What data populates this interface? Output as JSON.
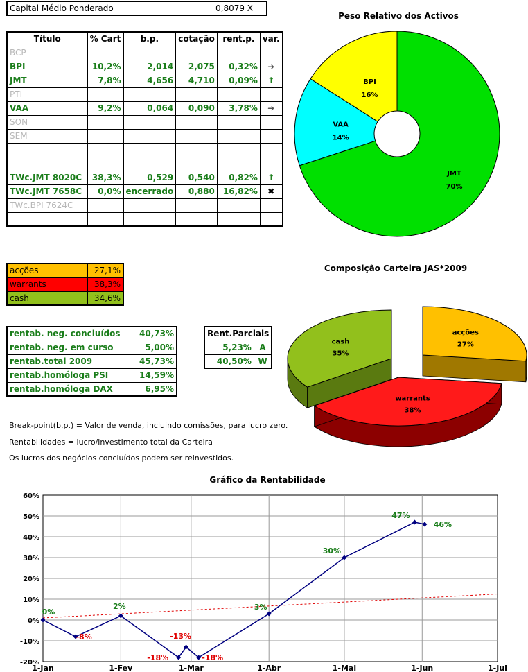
{
  "capital": {
    "label": "Capital Médio Ponderado",
    "value": "0,8079 X"
  },
  "portfolio_table": {
    "headers": [
      "Título",
      "% Cart",
      "b.p.",
      "cotação",
      "rent.p.",
      "var."
    ],
    "rows": [
      {
        "titulo": "BCP",
        "cart": "",
        "bp": "",
        "cot": "",
        "rent": "",
        "var": "",
        "active": false
      },
      {
        "titulo": "BPI",
        "cart": "10,2%",
        "bp": "2,014",
        "cot": "2,075",
        "rent": "0,32%",
        "var": "right-arrow",
        "active": true
      },
      {
        "titulo": "JMT",
        "cart": "7,8%",
        "bp": "4,656",
        "cot": "4,710",
        "rent": "0,09%",
        "var": "up-arrow",
        "active": true
      },
      {
        "titulo": "PTI",
        "cart": "",
        "bp": "",
        "cot": "",
        "rent": "",
        "var": "",
        "active": false
      },
      {
        "titulo": "VAA",
        "cart": "9,2%",
        "bp": "0,064",
        "cot": "0,090",
        "rent": "3,78%",
        "var": "right-arrow",
        "active": true
      },
      {
        "titulo": "SON",
        "cart": "",
        "bp": "",
        "cot": "",
        "rent": "",
        "var": "",
        "active": false
      },
      {
        "titulo": "SEM",
        "cart": "",
        "bp": "",
        "cot": "",
        "rent": "",
        "var": "",
        "active": false
      },
      {
        "titulo": "",
        "cart": "",
        "bp": "",
        "cot": "",
        "rent": "",
        "var": "",
        "active": false
      },
      {
        "titulo": "",
        "cart": "",
        "bp": "",
        "cot": "",
        "rent": "",
        "var": "",
        "active": false
      },
      {
        "titulo": "TWc.JMT 8020C",
        "cart": "38,3%",
        "bp": "0,529",
        "cot": "0,540",
        "rent": "0,82%",
        "var": "up-arrow",
        "active": true
      },
      {
        "titulo": "TWc.JMT 7658C",
        "cart": "0,0%",
        "bp": "encerrado",
        "cot": "0,880",
        "rent": "16,82%",
        "var": "x-mark",
        "active": true
      },
      {
        "titulo": "TWc.BPI 7624C",
        "cart": "",
        "bp": "",
        "cot": "",
        "rent": "",
        "var": "",
        "active": false
      },
      {
        "titulo": "",
        "cart": "",
        "bp": "",
        "cot": "",
        "rent": "",
        "var": "",
        "active": false
      }
    ]
  },
  "composition_table": [
    {
      "label": "acções",
      "value": "27,1%",
      "color": "#ffc000"
    },
    {
      "label": "warrants",
      "value": "38,3%",
      "color": "#ff0000"
    },
    {
      "label": "cash",
      "value": "34,6%",
      "color": "#92c01c"
    }
  ],
  "rent_table": [
    {
      "label": "rentab. neg. concluídos",
      "value": "40,73%"
    },
    {
      "label": "rentab. neg. em curso",
      "value": "5,00%"
    },
    {
      "label": "rentab.total 2009",
      "value": "45,73%"
    },
    {
      "label": "rentab.homóloga PSI",
      "value": "14,59%"
    },
    {
      "label": "rentab.homóloga DAX",
      "value": "6,95%"
    }
  ],
  "parciais": {
    "header": "Rent.Parciais",
    "rows": [
      {
        "value": "5,23%",
        "tag": "A"
      },
      {
        "value": "40,50%",
        "tag": "W"
      }
    ]
  },
  "notes": [
    "Break-point(b.p.) = Valor de venda, incluindo comissões, para lucro zero.",
    "Rentabilidades = lucro/investimento total da Carteira",
    "Os lucros dos negócios concluídos podem ser reinvestidos."
  ],
  "chart_data": [
    {
      "type": "pie",
      "title": "Peso Relativo dos Activos",
      "labels": [
        "BPI",
        "JMT",
        "VAA"
      ],
      "values": [
        16,
        70,
        14
      ],
      "value_labels": [
        "16%",
        "70%",
        "14%"
      ],
      "colors": [
        "#ffff00",
        "#00e000",
        "#00ffff"
      ]
    },
    {
      "type": "pie",
      "title": "Composição Carteira JAS*2009",
      "labels": [
        "acções",
        "warrants",
        "cash"
      ],
      "values": [
        27,
        38,
        35
      ],
      "value_labels": [
        "27%",
        "38%",
        "35%"
      ],
      "colors": [
        "#ffc000",
        "#ff1a1a",
        "#92c01c"
      ],
      "dark_colors": [
        "#a07800",
        "#8c0000",
        "#5a7a10"
      ]
    },
    {
      "type": "line",
      "title": "Gráfico da Rentabilidade",
      "x_ticks": [
        "1-Jan",
        "1-Fev",
        "1-Mar",
        "1-Abr",
        "1-Mai",
        "1-Jun",
        "1-Jul"
      ],
      "y_ticks": [
        "-20%",
        "-10%",
        "0%",
        "10%",
        "20%",
        "30%",
        "40%",
        "50%",
        "60%"
      ],
      "ylim": [
        -20,
        60
      ],
      "series": [
        {
          "points": [
            {
              "x": "2009-01-01",
              "y": 0,
              "label": "0%",
              "label_color": "#1a7d1a"
            },
            {
              "x": "2009-01-14",
              "y": -8,
              "label": "-8%",
              "label_color": "#e00000"
            },
            {
              "x": "2009-02-01",
              "y": 2,
              "label": "2%",
              "label_color": "#1a7d1a"
            },
            {
              "x": "2009-02-24",
              "y": -18,
              "label": "-18%",
              "label_color": "#e00000"
            },
            {
              "x": "2009-02-27",
              "y": -13,
              "label": "-13%",
              "label_color": "#e00000"
            },
            {
              "x": "2009-03-04",
              "y": -18,
              "label": "-18%",
              "label_color": "#e00000"
            },
            {
              "x": "2009-04-01",
              "y": 3,
              "label": "3%",
              "label_color": "#1a7d1a"
            },
            {
              "x": "2009-05-01",
              "y": 30,
              "label": "30%",
              "label_color": "#1a7d1a"
            },
            {
              "x": "2009-05-29",
              "y": 47,
              "label": "47%",
              "label_color": "#1a7d1a"
            },
            {
              "x": "2009-06-02",
              "y": 46,
              "label": "46%",
              "label_color": "#1a7d1a"
            }
          ],
          "color": "#000080"
        },
        {
          "points": [
            {
              "x": "2009-01-01",
              "y": 1
            },
            {
              "x": "2009-07-01",
              "y": 12.5
            }
          ],
          "color": "#e00000",
          "style": "dashed"
        }
      ]
    }
  ]
}
